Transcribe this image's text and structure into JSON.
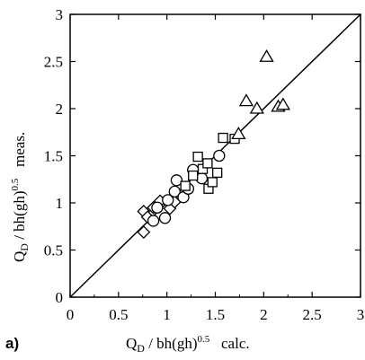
{
  "chart_data": {
    "type": "scatter",
    "panel_label": "a)",
    "xlabel": {
      "pre": "Q",
      "sub": "D",
      "mid": " / bh(gh)",
      "sup": "0.5",
      "post": "   calc."
    },
    "ylabel": {
      "pre": "Q",
      "sub": "D",
      "mid": " / bh(gh)",
      "sup": "0.5",
      "post": "   meas."
    },
    "xlim": [
      0,
      3
    ],
    "ylim": [
      0,
      3
    ],
    "xticks": [
      "0",
      "0.5",
      "1",
      "1.5",
      "2",
      "2.5",
      "3"
    ],
    "yticks": [
      "0",
      "0.5",
      "1",
      "1.5",
      "2",
      "2.5",
      "3"
    ],
    "grid": false,
    "reference_line": {
      "type": "y=x",
      "from": [
        0,
        0
      ],
      "to": [
        3,
        3
      ]
    },
    "series": [
      {
        "marker": "diamond",
        "points": [
          [
            0.76,
            0.69
          ],
          [
            0.76,
            0.91
          ],
          [
            0.8,
            0.85
          ],
          [
            0.86,
            0.95
          ],
          [
            0.92,
            0.98
          ],
          [
            0.93,
            1.02
          ],
          [
            1.03,
            0.94
          ],
          [
            1.08,
            1.01
          ]
        ]
      },
      {
        "marker": "circle",
        "points": [
          [
            0.86,
            0.81
          ],
          [
            0.9,
            0.95
          ],
          [
            0.98,
            0.84
          ],
          [
            1.01,
            1.03
          ],
          [
            1.08,
            1.12
          ],
          [
            1.1,
            1.24
          ],
          [
            1.17,
            1.06
          ],
          [
            1.22,
            1.15
          ],
          [
            1.27,
            1.35
          ],
          [
            1.36,
            1.26
          ],
          [
            1.54,
            1.5
          ]
        ]
      },
      {
        "marker": "square",
        "points": [
          [
            1.19,
            1.18
          ],
          [
            1.27,
            1.29
          ],
          [
            1.32,
            1.49
          ],
          [
            1.37,
            1.36
          ],
          [
            1.42,
            1.42
          ],
          [
            1.43,
            1.15
          ],
          [
            1.47,
            1.22
          ],
          [
            1.52,
            1.32
          ],
          [
            1.58,
            1.69
          ],
          [
            1.7,
            1.68
          ]
        ]
      },
      {
        "marker": "triangle",
        "points": [
          [
            1.74,
            1.73
          ],
          [
            1.82,
            2.08
          ],
          [
            1.93,
            2.0
          ],
          [
            2.03,
            2.55
          ],
          [
            2.15,
            2.02
          ],
          [
            2.2,
            2.04
          ]
        ]
      }
    ]
  }
}
